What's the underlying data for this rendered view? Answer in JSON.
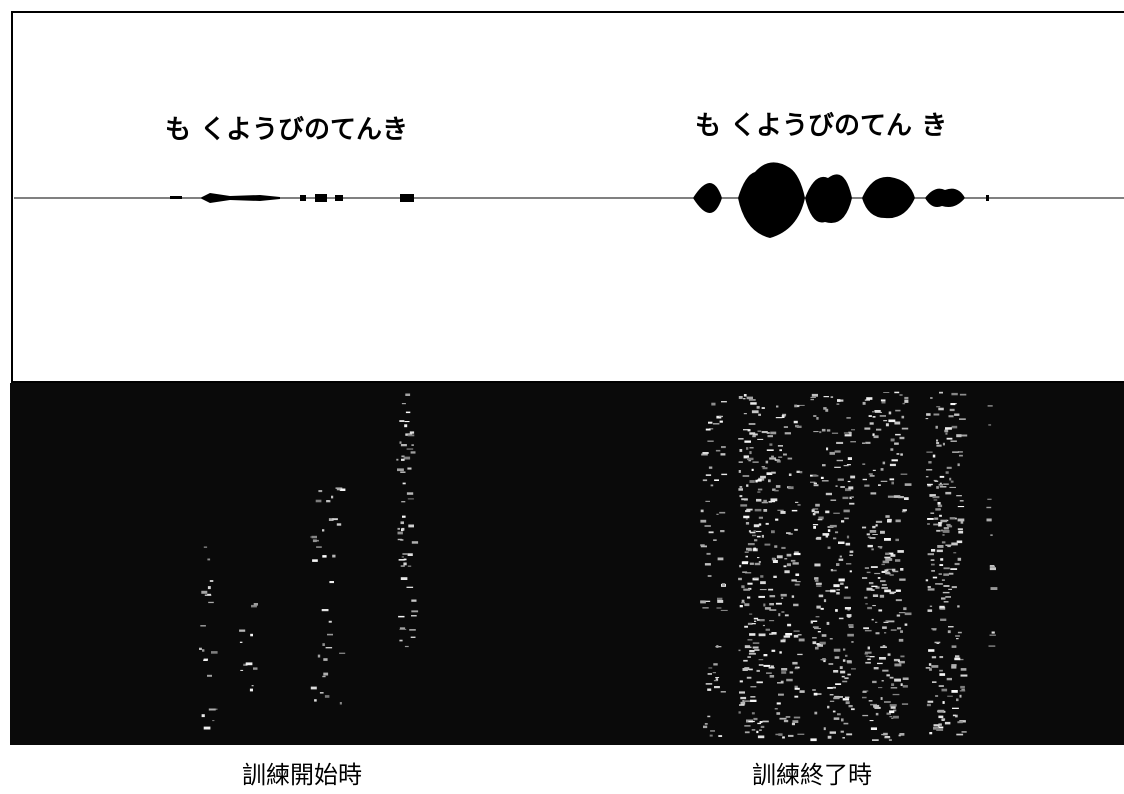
{
  "panels": [
    {
      "utterance": "も くようびのてんき",
      "caption": "訓練開始時"
    },
    {
      "utterance": "も くようびのてん き",
      "caption": "訓練終了時"
    }
  ]
}
